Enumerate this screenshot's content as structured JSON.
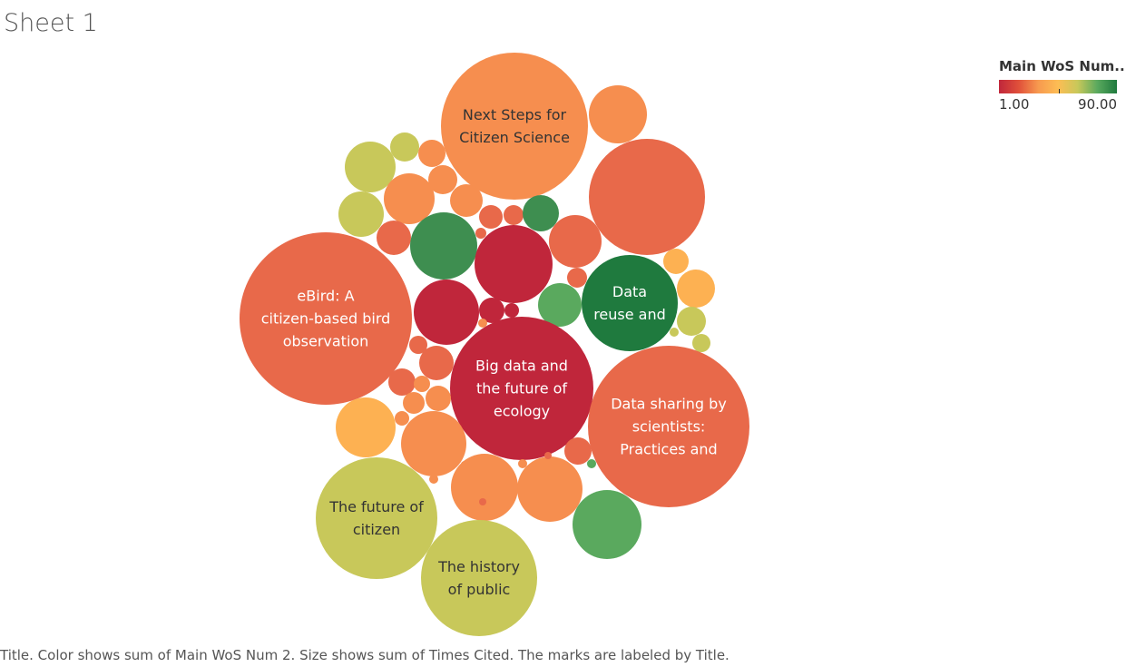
{
  "sheet": {
    "title": "Sheet 1"
  },
  "legend": {
    "title": "Main WoS Num..",
    "min_label": "1.00",
    "max_label": "90.00",
    "colors": [
      "#c0263b",
      "#e0503a",
      "#f79a4f",
      "#fdbd54",
      "#c8c85a",
      "#5aa95e",
      "#1f7a3e"
    ]
  },
  "caption": "Title.  Color shows sum of Main WoS Num 2.  Size shows sum of Times Cited.  The marks are labeled by Title.",
  "chart_data": {
    "type": "packed_bubble",
    "size_measure": "Times Cited",
    "color_measure": "Main WoS Num 2",
    "color_range": [
      1,
      90
    ],
    "bubbles": [
      {
        "label_lines": [
          "Next Steps for",
          "Citizen Science"
        ],
        "color": "#f68e4f",
        "text_color": "#333333"
      },
      {
        "label_lines": [],
        "color": "#f68e4f"
      },
      {
        "label_lines": [],
        "color": "#e8694a"
      },
      {
        "label_lines": [],
        "color": "#c8c85a"
      },
      {
        "label_lines": [],
        "color": "#c8c85a"
      },
      {
        "label_lines": [],
        "color": "#c8c85a"
      },
      {
        "label_lines": [],
        "color": "#f68e4f"
      },
      {
        "label_lines": [],
        "color": "#f68e4f"
      },
      {
        "label_lines": [],
        "color": "#f68e4f"
      },
      {
        "label_lines": [],
        "color": "#f68e4f"
      },
      {
        "label_lines": [],
        "color": "#e8694a"
      },
      {
        "label_lines": [],
        "color": "#e8694a"
      },
      {
        "label_lines": [],
        "color": "#3e8e50"
      },
      {
        "label_lines": [],
        "color": "#e8694a"
      },
      {
        "label_lines": [],
        "color": "#e8694a"
      },
      {
        "label_lines": [],
        "color": "#3e8e50"
      },
      {
        "label_lines": [],
        "color": "#e8694a"
      },
      {
        "label_lines": [],
        "color": "#c0263b"
      },
      {
        "label_lines": [],
        "color": "#e8694a"
      },
      {
        "label_lines": [],
        "color": "#e8694a"
      },
      {
        "label_lines": [
          "eBird: A",
          "citizen-based bird",
          "observation"
        ],
        "color": "#e8694a",
        "text_color": "#ffffff"
      },
      {
        "label_lines": [],
        "color": "#c0263b"
      },
      {
        "label_lines": [],
        "color": "#c0263b"
      },
      {
        "label_lines": [],
        "color": "#c0263b"
      },
      {
        "label_lines": [],
        "color": "#5aa95e"
      },
      {
        "label_lines": [
          "Data",
          "reuse and"
        ],
        "color": "#1f7a3e",
        "text_color": "#ffffff"
      },
      {
        "label_lines": [],
        "color": "#fdb152"
      },
      {
        "label_lines": [],
        "color": "#fdb152"
      },
      {
        "label_lines": [],
        "color": "#c8c85a"
      },
      {
        "label_lines": [],
        "color": "#c8c85a"
      },
      {
        "label_lines": [],
        "color": "#c8c85a"
      },
      {
        "label_lines": [],
        "color": "#f68e4f"
      },
      {
        "label_lines": [],
        "color": "#e8694a"
      },
      {
        "label_lines": [],
        "color": "#e8694a"
      },
      {
        "label_lines": [
          "Big data and",
          "the future of",
          "ecology"
        ],
        "color": "#c0263b",
        "text_color": "#ffffff"
      },
      {
        "label_lines": [],
        "color": "#f68e4f"
      },
      {
        "label_lines": [],
        "color": "#f68e4f"
      },
      {
        "label_lines": [],
        "color": "#f68e4f"
      },
      {
        "label_lines": [],
        "color": "#f68e4f"
      },
      {
        "label_lines": [],
        "color": "#e8694a"
      },
      {
        "label_lines": [],
        "color": "#fdb152"
      },
      {
        "label_lines": [],
        "color": "#f68e4f"
      },
      {
        "label_lines": [
          "Data sharing by",
          "scientists:",
          "Practices and"
        ],
        "color": "#e8694a",
        "text_color": "#ffffff"
      },
      {
        "label_lines": [],
        "color": "#f68e4f"
      },
      {
        "label_lines": [],
        "color": "#f68e4f"
      },
      {
        "label_lines": [],
        "color": "#f68e4f"
      },
      {
        "label_lines": [],
        "color": "#5aa95e"
      },
      {
        "label_lines": [],
        "color": "#e8694a"
      },
      {
        "label_lines": [],
        "color": "#5aa95e"
      },
      {
        "label_lines": [
          "The future of",
          "citizen"
        ],
        "color": "#c8c85a",
        "text_color": "#333333"
      },
      {
        "label_lines": [
          "The history",
          "of public"
        ],
        "color": "#c8c85a",
        "text_color": "#333333"
      },
      {
        "label_lines": [],
        "color": "#f68e4f"
      },
      {
        "label_lines": [],
        "color": "#e8694a"
      },
      {
        "label_lines": [],
        "color": "#f68e4f"
      }
    ]
  }
}
